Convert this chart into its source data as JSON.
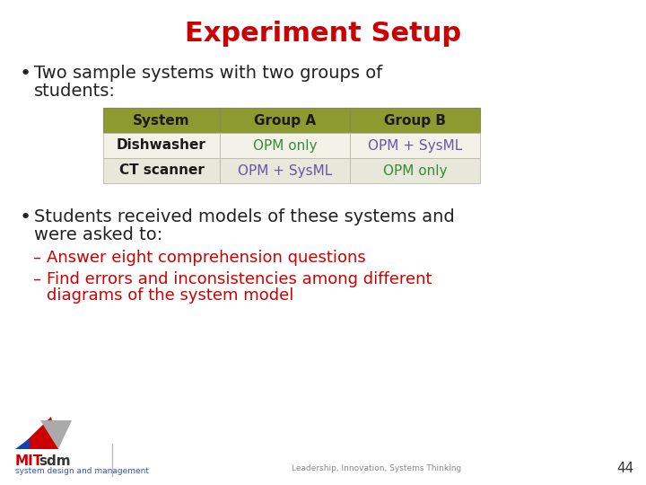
{
  "title": "Experiment Setup",
  "title_color": "#CC0000",
  "title_fontsize": 22,
  "background_color": "#FFFFFF",
  "bullet1_line1": "Two sample systems with two groups of",
  "bullet1_line2": "students:",
  "bullet_fontsize": 14,
  "bullet_color": "#222222",
  "table": {
    "header": [
      "System",
      "Group A",
      "Group B"
    ],
    "rows": [
      [
        "Dishwasher",
        "OPM only",
        "OPM + SysML"
      ],
      [
        "CT scanner",
        "OPM + SysML",
        "OPM only"
      ]
    ],
    "header_bg": "#8B9B30",
    "header_color": "#1A1A1A",
    "row_bg_even": "#F2F2E8",
    "row_bg_odd": "#E8E8DA",
    "system_col_color": "#1A1A1A",
    "groupA_colors": [
      "#3A8A3A",
      "#6655AA"
    ],
    "groupB_colors": [
      "#6655AA",
      "#3A8A3A"
    ],
    "cell_fontsize": 11,
    "header_fontsize": 11
  },
  "bullet2_line1": "Students received models of these systems and",
  "bullet2_line2": "were asked to:",
  "bullet2_fontsize": 14,
  "bullet2_color": "#222222",
  "sub_bullet1": "Answer eight comprehension questions",
  "sub_bullet2_line1": "Find errors and inconsistencies among different",
  "sub_bullet2_line2": "diagrams of the system model",
  "sub_bullet_color": "#CC0000",
  "sub_bullet_fontsize": 13,
  "footer_right": "Leadership, Innovation, Systems Thinking",
  "footer_sub": "system design and management",
  "page_number": "44"
}
